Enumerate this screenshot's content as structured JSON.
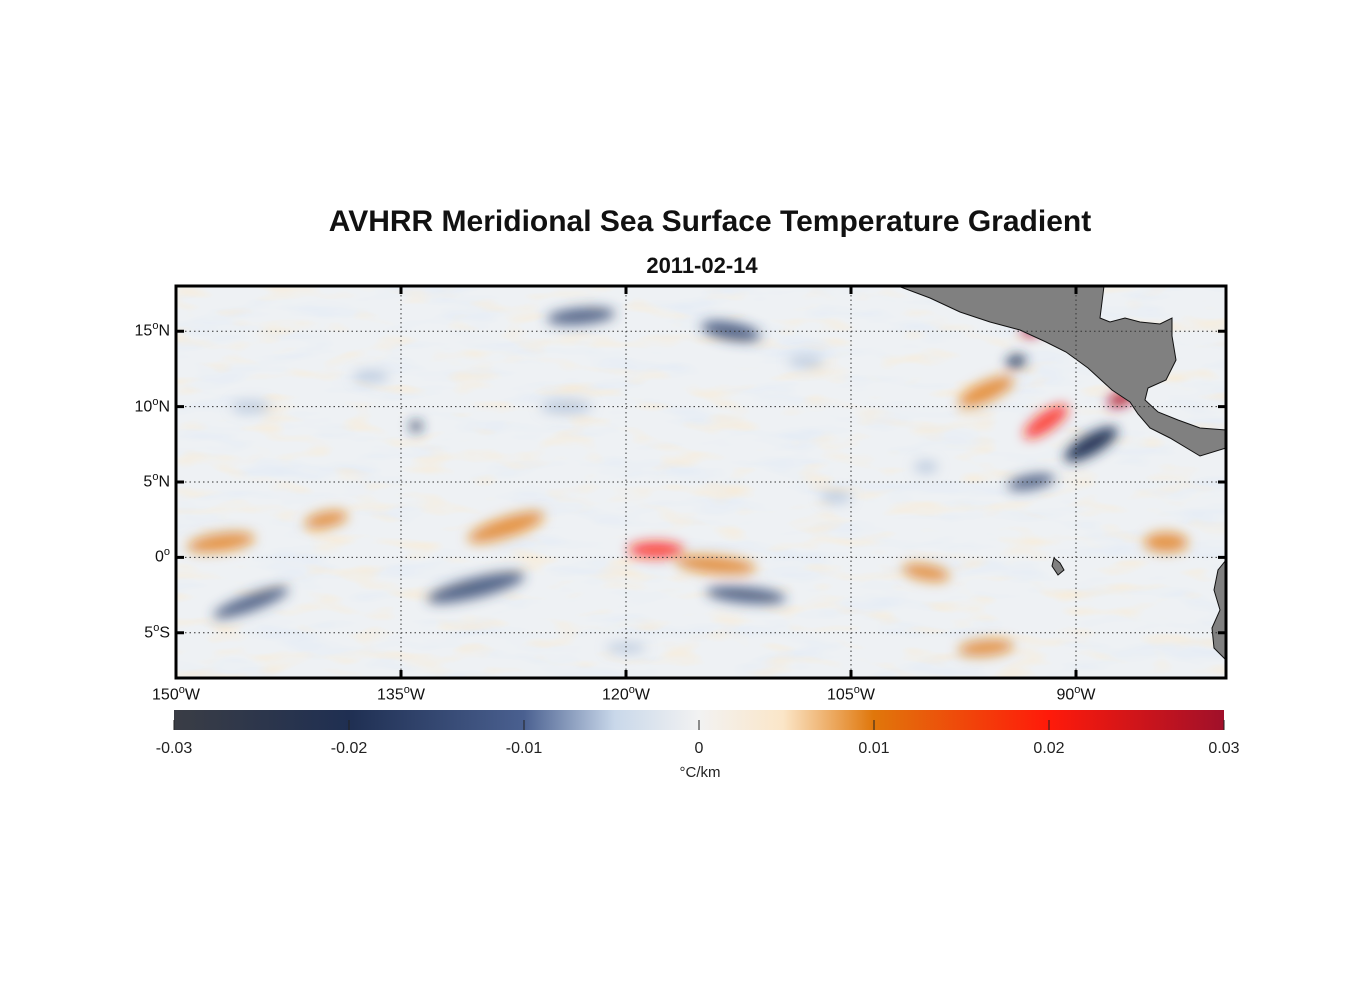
{
  "title": "AVHRR Meridional Sea Surface Temperature Gradient",
  "subtitle": "2011-02-14",
  "map": {
    "lon_range": [
      -150,
      -80
    ],
    "lat_range": [
      -8,
      18
    ],
    "projection": "equirectangular",
    "grid": true,
    "land_color": "#808080",
    "regions": [
      "Mexico",
      "Central America"
    ]
  },
  "axes": {
    "lat_ticks": [
      {
        "value": 15,
        "num": "15",
        "hemi": "N"
      },
      {
        "value": 10,
        "num": "10",
        "hemi": "N"
      },
      {
        "value": 5,
        "num": "5",
        "hemi": "N"
      },
      {
        "value": 0,
        "num": "0",
        "hemi": ""
      },
      {
        "value": -5,
        "num": "5",
        "hemi": "S"
      }
    ],
    "lon_ticks": [
      {
        "value": -150,
        "num": "150",
        "hemi": "W"
      },
      {
        "value": -135,
        "num": "135",
        "hemi": "W"
      },
      {
        "value": -120,
        "num": "120",
        "hemi": "W"
      },
      {
        "value": -105,
        "num": "105",
        "hemi": "W"
      },
      {
        "value": -90,
        "num": "90",
        "hemi": "W"
      }
    ],
    "degree_symbol": "o"
  },
  "colorbar": {
    "min": -0.03,
    "max": 0.03,
    "tick_labels": [
      "-0.03",
      "-0.02",
      "-0.01",
      "0",
      "0.01",
      "0.02",
      "0.03"
    ],
    "tick_values": [
      -0.03,
      -0.02,
      -0.01,
      0,
      0.01,
      0.02,
      0.03
    ],
    "unit": "°C/km",
    "colors": [
      "#3a3d45",
      "#1f2f52",
      "#4a6090",
      "#c9d8ea",
      "#f2f2f2",
      "#fbe6c8",
      "#e0770b",
      "#ff1a0a",
      "#a0102a"
    ]
  }
}
